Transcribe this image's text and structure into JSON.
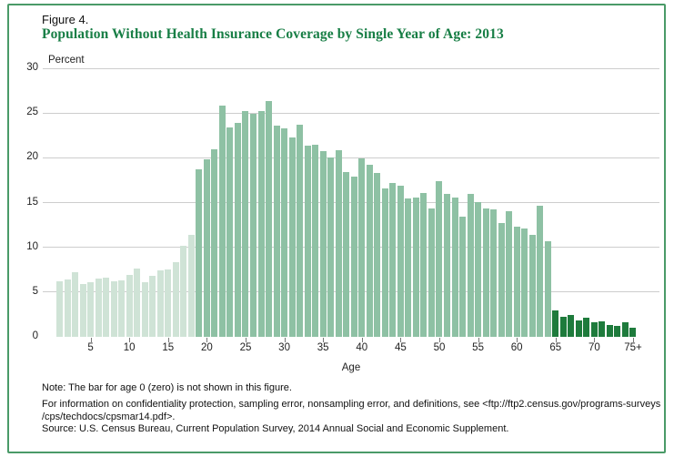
{
  "figure": {
    "label": "Figure 4.",
    "title": "Population Without Health Insurance Coverage by Single Year of Age: 2013"
  },
  "chart_data": {
    "type": "bar",
    "title": "Population Without Health Insurance Coverage by Single Year of Age: 2013",
    "xlabel": "Age",
    "ylabel": "Percent",
    "ylim": [
      0,
      30
    ],
    "yticks": [
      0,
      5,
      10,
      15,
      20,
      25,
      30
    ],
    "xtick_ages": [
      5,
      10,
      15,
      20,
      25,
      30,
      35,
      40,
      45,
      50,
      55,
      60,
      65,
      70,
      75
    ],
    "xtick_labels": [
      "5",
      "10",
      "15",
      "20",
      "25",
      "30",
      "35",
      "40",
      "45",
      "50",
      "55",
      "60",
      "65",
      "70",
      "75+"
    ],
    "grid": true,
    "legend": false,
    "x": [
      "1",
      "2",
      "3",
      "4",
      "5",
      "6",
      "7",
      "8",
      "9",
      "10",
      "11",
      "12",
      "13",
      "14",
      "15",
      "16",
      "17",
      "18",
      "19",
      "20",
      "21",
      "22",
      "23",
      "24",
      "25",
      "26",
      "27",
      "28",
      "29",
      "30",
      "31",
      "32",
      "33",
      "34",
      "35",
      "36",
      "37",
      "38",
      "39",
      "40",
      "41",
      "42",
      "43",
      "44",
      "45",
      "46",
      "47",
      "48",
      "49",
      "50",
      "51",
      "52",
      "53",
      "54",
      "55",
      "56",
      "57",
      "58",
      "59",
      "60",
      "61",
      "62",
      "63",
      "64",
      "65",
      "66",
      "67",
      "68",
      "69",
      "70",
      "71",
      "72",
      "73",
      "74",
      "75+"
    ],
    "values": [
      6.2,
      6.4,
      7.2,
      5.9,
      6.1,
      6.5,
      6.6,
      6.2,
      6.3,
      6.9,
      7.6,
      6.1,
      6.8,
      7.4,
      7.5,
      8.3,
      10.2,
      11.4,
      18.7,
      19.8,
      20.9,
      25.8,
      23.4,
      23.9,
      25.2,
      24.9,
      25.2,
      26.3,
      23.6,
      23.3,
      22.3,
      23.7,
      21.4,
      21.5,
      20.7,
      20.0,
      20.8,
      18.4,
      17.9,
      19.9,
      19.2,
      18.3,
      16.6,
      17.2,
      16.9,
      15.5,
      15.6,
      16.1,
      14.3,
      17.4,
      16.0,
      15.6,
      13.4,
      16.0,
      15.1,
      14.3,
      14.2,
      12.7,
      14.0,
      12.3,
      12.1,
      11.4,
      14.6,
      10.7,
      3.0,
      2.2,
      2.4,
      1.8,
      2.1,
      1.6,
      1.7,
      1.3,
      1.2,
      1.6,
      1.0
    ],
    "age_groups": [
      {
        "name": "under-19",
        "from_age": 1,
        "to_age": 18,
        "color": "#cfe3d6"
      },
      {
        "name": "19-to-64",
        "from_age": 19,
        "to_age": 64,
        "color": "#8ec1a4"
      },
      {
        "name": "65-and-over",
        "from_age": 65,
        "to_age": 75,
        "color": "#1e7b3c"
      }
    ]
  },
  "notes": {
    "note": "Note: The bar for age 0 (zero) is not shown in this figure.",
    "footnote_lines": [
      "For information on confidentiality protection, sampling error, nonsampling error, and definitions, see <ftp://ftp2.census.gov/programs-surveys",
      "/cps/techdocs/cpsmar14.pdf>."
    ],
    "source": "Source: U.S. Census Bureau, Current Population Survey, 2014 Annual Social and Economic Supplement."
  },
  "colors": {
    "title_green": "#177e45",
    "border_green": "#4a9a68",
    "gridline_gray": "#cdcdcd"
  }
}
